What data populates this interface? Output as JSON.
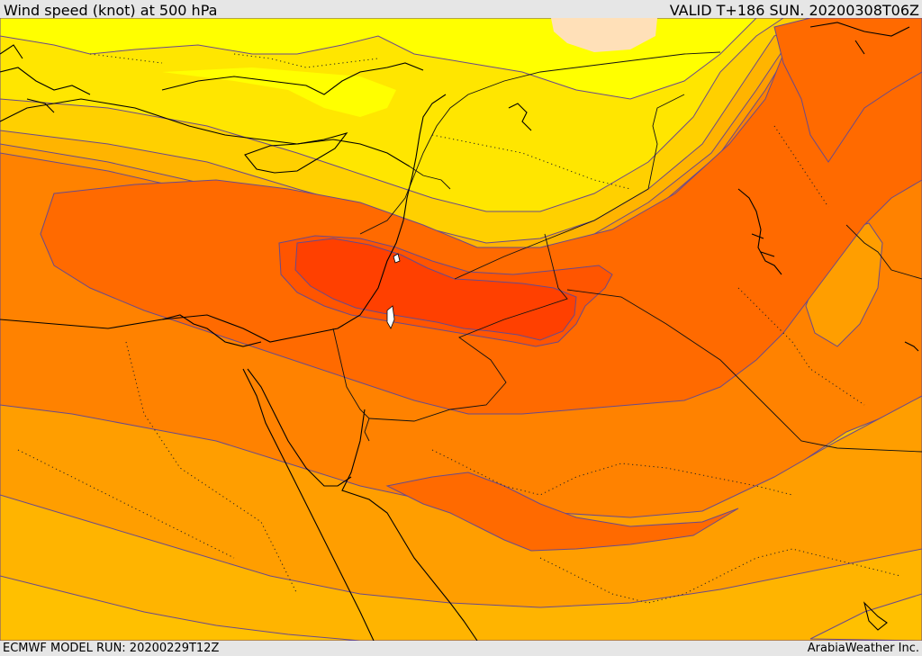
{
  "header": {
    "title": "Wind speed (knot) at 500 hPa",
    "valid": "VALID T+186 SUN. 20200308T06Z"
  },
  "footer": {
    "model_run": "ECMWF MODEL RUN: 20200229T12Z",
    "provider": "ArabiaWeather Inc."
  },
  "colors": {
    "band_1": "#ffff00",
    "band_2": "#ffe600",
    "band_3": "#ffd000",
    "band_4": "#ffb400",
    "band_5": "#ff9e00",
    "band_6": "#ff8200",
    "band_7": "#ff6a00",
    "band_8": "#ff5500",
    "band_9": "#ff4000",
    "light_peach": "#ffe0b8"
  }
}
